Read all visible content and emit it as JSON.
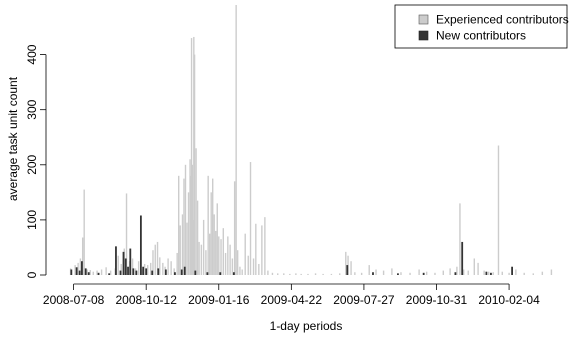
{
  "chart_data": {
    "type": "bar",
    "title": "",
    "xlabel": "1-day periods",
    "ylabel": "average task unit count",
    "x_start": "2008-06-20",
    "x_end": "2010-04-15",
    "x_ticks": [
      "2008-07-08",
      "2008-10-12",
      "2009-01-16",
      "2009-04-22",
      "2009-07-27",
      "2009-10-31",
      "2010-02-04"
    ],
    "ylim": [
      0,
      490
    ],
    "y_ticks": [
      0,
      100,
      200,
      300,
      400
    ],
    "grid": false,
    "legend_position": "top-right",
    "series": [
      {
        "name": "Experienced contributors",
        "color": "#cccccc",
        "points": [
          [
            "2008-07-04",
            12
          ],
          [
            "2008-07-10",
            18
          ],
          [
            "2008-07-14",
            22
          ],
          [
            "2008-07-17",
            30
          ],
          [
            "2008-07-20",
            68
          ],
          [
            "2008-07-22",
            155
          ],
          [
            "2008-07-26",
            10
          ],
          [
            "2008-07-30",
            9
          ],
          [
            "2008-08-03",
            6
          ],
          [
            "2008-08-08",
            8
          ],
          [
            "2008-08-14",
            10
          ],
          [
            "2008-08-20",
            14
          ],
          [
            "2008-08-26",
            8
          ],
          [
            "2008-09-01",
            12
          ],
          [
            "2008-09-05",
            35
          ],
          [
            "2008-09-09",
            20
          ],
          [
            "2008-09-13",
            48
          ],
          [
            "2008-09-16",
            148
          ],
          [
            "2008-09-20",
            25
          ],
          [
            "2008-09-24",
            30
          ],
          [
            "2008-09-28",
            12
          ],
          [
            "2008-10-02",
            25
          ],
          [
            "2008-10-06",
            10
          ],
          [
            "2008-10-10",
            20
          ],
          [
            "2008-10-14",
            18
          ],
          [
            "2008-10-18",
            22
          ],
          [
            "2008-10-21",
            45
          ],
          [
            "2008-10-24",
            55
          ],
          [
            "2008-10-27",
            60
          ],
          [
            "2008-10-30",
            32
          ],
          [
            "2008-11-03",
            22
          ],
          [
            "2008-11-06",
            15
          ],
          [
            "2008-11-10",
            30
          ],
          [
            "2008-11-14",
            25
          ],
          [
            "2008-11-18",
            12
          ],
          [
            "2008-11-22",
            40
          ],
          [
            "2008-11-24",
            180
          ],
          [
            "2008-11-26",
            90
          ],
          [
            "2008-11-29",
            110
          ],
          [
            "2008-12-01",
            175
          ],
          [
            "2008-12-03",
            200
          ],
          [
            "2008-12-05",
            95
          ],
          [
            "2008-12-07",
            150
          ],
          [
            "2008-12-09",
            210
          ],
          [
            "2008-12-10",
            180
          ],
          [
            "2008-12-11",
            430
          ],
          [
            "2008-12-12",
            200
          ],
          [
            "2008-12-13",
            100
          ],
          [
            "2008-12-14",
            432
          ],
          [
            "2008-12-15",
            400
          ],
          [
            "2008-12-17",
            230
          ],
          [
            "2008-12-19",
            135
          ],
          [
            "2008-12-21",
            60
          ],
          [
            "2008-12-24",
            55
          ],
          [
            "2008-12-27",
            100
          ],
          [
            "2008-12-30",
            45
          ],
          [
            "2009-01-02",
            180
          ],
          [
            "2009-01-04",
            75
          ],
          [
            "2009-01-06",
            150
          ],
          [
            "2009-01-08",
            175
          ],
          [
            "2009-01-10",
            110
          ],
          [
            "2009-01-12",
            80
          ],
          [
            "2009-01-14",
            130
          ],
          [
            "2009-01-16",
            70
          ],
          [
            "2009-01-19",
            65
          ],
          [
            "2009-01-22",
            85
          ],
          [
            "2009-01-25",
            40
          ],
          [
            "2009-01-28",
            70
          ],
          [
            "2009-01-31",
            55
          ],
          [
            "2009-02-03",
            30
          ],
          [
            "2009-02-06",
            170
          ],
          [
            "2009-02-08",
            490
          ],
          [
            "2009-02-10",
            45
          ],
          [
            "2009-02-13",
            15
          ],
          [
            "2009-02-16",
            10
          ],
          [
            "2009-02-20",
            75
          ],
          [
            "2009-02-24",
            35
          ],
          [
            "2009-02-27",
            205
          ],
          [
            "2009-03-03",
            30
          ],
          [
            "2009-03-06",
            93
          ],
          [
            "2009-03-10",
            20
          ],
          [
            "2009-03-14",
            90
          ],
          [
            "2009-03-18",
            105
          ],
          [
            "2009-03-22",
            8
          ],
          [
            "2009-03-28",
            4
          ],
          [
            "2009-04-04",
            3
          ],
          [
            "2009-04-12",
            3
          ],
          [
            "2009-04-20",
            2
          ],
          [
            "2009-04-28",
            3
          ],
          [
            "2009-05-05",
            2
          ],
          [
            "2009-05-14",
            2
          ],
          [
            "2009-05-24",
            3
          ],
          [
            "2009-06-03",
            2
          ],
          [
            "2009-06-14",
            2
          ],
          [
            "2009-06-25",
            3
          ],
          [
            "2009-07-03",
            42
          ],
          [
            "2009-07-06",
            35
          ],
          [
            "2009-07-10",
            25
          ],
          [
            "2009-07-15",
            5
          ],
          [
            "2009-07-24",
            4
          ],
          [
            "2009-08-03",
            18
          ],
          [
            "2009-08-12",
            10
          ],
          [
            "2009-08-22",
            8
          ],
          [
            "2009-09-02",
            12
          ],
          [
            "2009-09-14",
            5
          ],
          [
            "2009-09-26",
            4
          ],
          [
            "2009-10-08",
            10
          ],
          [
            "2009-10-18",
            6
          ],
          [
            "2009-10-29",
            4
          ],
          [
            "2009-11-09",
            8
          ],
          [
            "2009-11-18",
            12
          ],
          [
            "2009-11-27",
            15
          ],
          [
            "2009-12-01",
            130
          ],
          [
            "2009-12-06",
            10
          ],
          [
            "2009-12-12",
            8
          ],
          [
            "2009-12-20",
            30
          ],
          [
            "2009-12-25",
            22
          ],
          [
            "2010-01-02",
            8
          ],
          [
            "2010-01-08",
            6
          ],
          [
            "2010-01-14",
            5
          ],
          [
            "2010-01-21",
            235
          ],
          [
            "2010-01-26",
            6
          ],
          [
            "2010-02-04",
            4
          ],
          [
            "2010-02-13",
            10
          ],
          [
            "2010-02-24",
            4
          ],
          [
            "2010-03-08",
            3
          ],
          [
            "2010-03-20",
            6
          ],
          [
            "2010-04-01",
            10
          ]
        ]
      },
      {
        "name": "New contributors",
        "color": "#333333",
        "points": [
          [
            "2008-07-05",
            10
          ],
          [
            "2008-07-12",
            14
          ],
          [
            "2008-07-16",
            8
          ],
          [
            "2008-07-19",
            25
          ],
          [
            "2008-07-24",
            12
          ],
          [
            "2008-07-28",
            5
          ],
          [
            "2008-08-10",
            4
          ],
          [
            "2008-08-24",
            3
          ],
          [
            "2008-09-02",
            52
          ],
          [
            "2008-09-08",
            8
          ],
          [
            "2008-09-12",
            42
          ],
          [
            "2008-09-15",
            30
          ],
          [
            "2008-09-18",
            15
          ],
          [
            "2008-09-21",
            48
          ],
          [
            "2008-09-25",
            12
          ],
          [
            "2008-09-29",
            8
          ],
          [
            "2008-10-05",
            108
          ],
          [
            "2008-10-08",
            15
          ],
          [
            "2008-10-12",
            12
          ],
          [
            "2008-10-20",
            8
          ],
          [
            "2008-10-28",
            12
          ],
          [
            "2008-11-07",
            10
          ],
          [
            "2008-11-19",
            5
          ],
          [
            "2008-11-28",
            10
          ],
          [
            "2008-12-02",
            15
          ],
          [
            "2008-12-16",
            8
          ],
          [
            "2009-01-01",
            5
          ],
          [
            "2009-01-18",
            5
          ],
          [
            "2009-02-05",
            5
          ],
          [
            "2009-07-05",
            18
          ],
          [
            "2009-08-08",
            5
          ],
          [
            "2009-09-10",
            3
          ],
          [
            "2009-10-14",
            4
          ],
          [
            "2009-11-25",
            5
          ],
          [
            "2009-12-04",
            60
          ],
          [
            "2010-01-05",
            6
          ],
          [
            "2010-01-11",
            4
          ],
          [
            "2010-02-08",
            15
          ]
        ]
      }
    ]
  }
}
